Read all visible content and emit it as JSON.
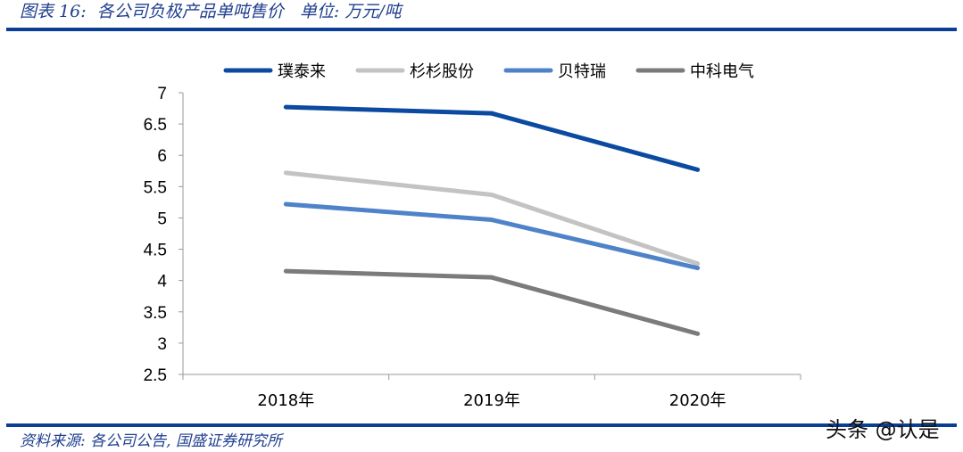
{
  "header": {
    "title": "图表 16:  各公司负极产品单吨售价   单位: 万元/吨"
  },
  "footer": {
    "source": "资料来源: 各公司公告, 国盛证券研究所",
    "watermark": "头条 @认是"
  },
  "chart_data": {
    "type": "line",
    "title": "",
    "xlabel": "",
    "ylabel": "",
    "categories": [
      "2018年",
      "2019年",
      "2020年"
    ],
    "ylim": [
      2.5,
      7
    ],
    "yticks": [
      "2.5",
      "3",
      "3.5",
      "4",
      "4.5",
      "5",
      "5.5",
      "6",
      "6.5",
      "7"
    ],
    "grid": false,
    "legend": "top",
    "series": [
      {
        "name": "璞泰来",
        "color": "#0b4aa0",
        "values": [
          6.77,
          6.67,
          5.77
        ]
      },
      {
        "name": "杉杉股份",
        "color": "#c3c3c3",
        "values": [
          5.72,
          5.37,
          4.27
        ]
      },
      {
        "name": "贝特瑞",
        "color": "#4f83c9",
        "values": [
          5.22,
          4.97,
          4.2
        ]
      },
      {
        "name": "中科电气",
        "color": "#7b7b7b",
        "values": [
          4.15,
          4.05,
          3.15
        ]
      }
    ]
  }
}
